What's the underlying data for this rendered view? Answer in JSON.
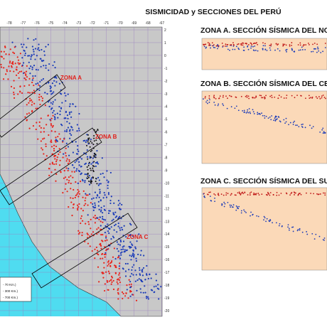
{
  "title": "SISMICIDAD y SECCIONES DEL PERÚ",
  "map": {
    "lon_ticks": [
      -78,
      -77,
      -76,
      -75,
      -74,
      -73,
      -72,
      -71,
      -70,
      -69,
      -68,
      -67
    ],
    "lat_ticks": [
      2,
      1,
      0,
      -1,
      -2,
      -3,
      -4,
      -5,
      -6,
      -7,
      -8,
      -9,
      -10,
      -11,
      -12,
      -13,
      -14,
      -15,
      -16,
      -17,
      -18,
      -19,
      -20
    ],
    "zone_labels": [
      "ZONA A",
      "ZONA B",
      "ZONA C"
    ],
    "legend": [
      "- 70 Km.)",
      "- 300 Km.)",
      "- 700 Km.)"
    ]
  },
  "sections": [
    {
      "title": "ZONA A. SECCIÓN SÍSMICA DEL NORT"
    },
    {
      "title": "ZONA B. SECCIÓN SÍSMICA DEL CENT"
    },
    {
      "title": "ZONA C. SECCIÓN SÍSMICA DEL SUR"
    }
  ]
}
